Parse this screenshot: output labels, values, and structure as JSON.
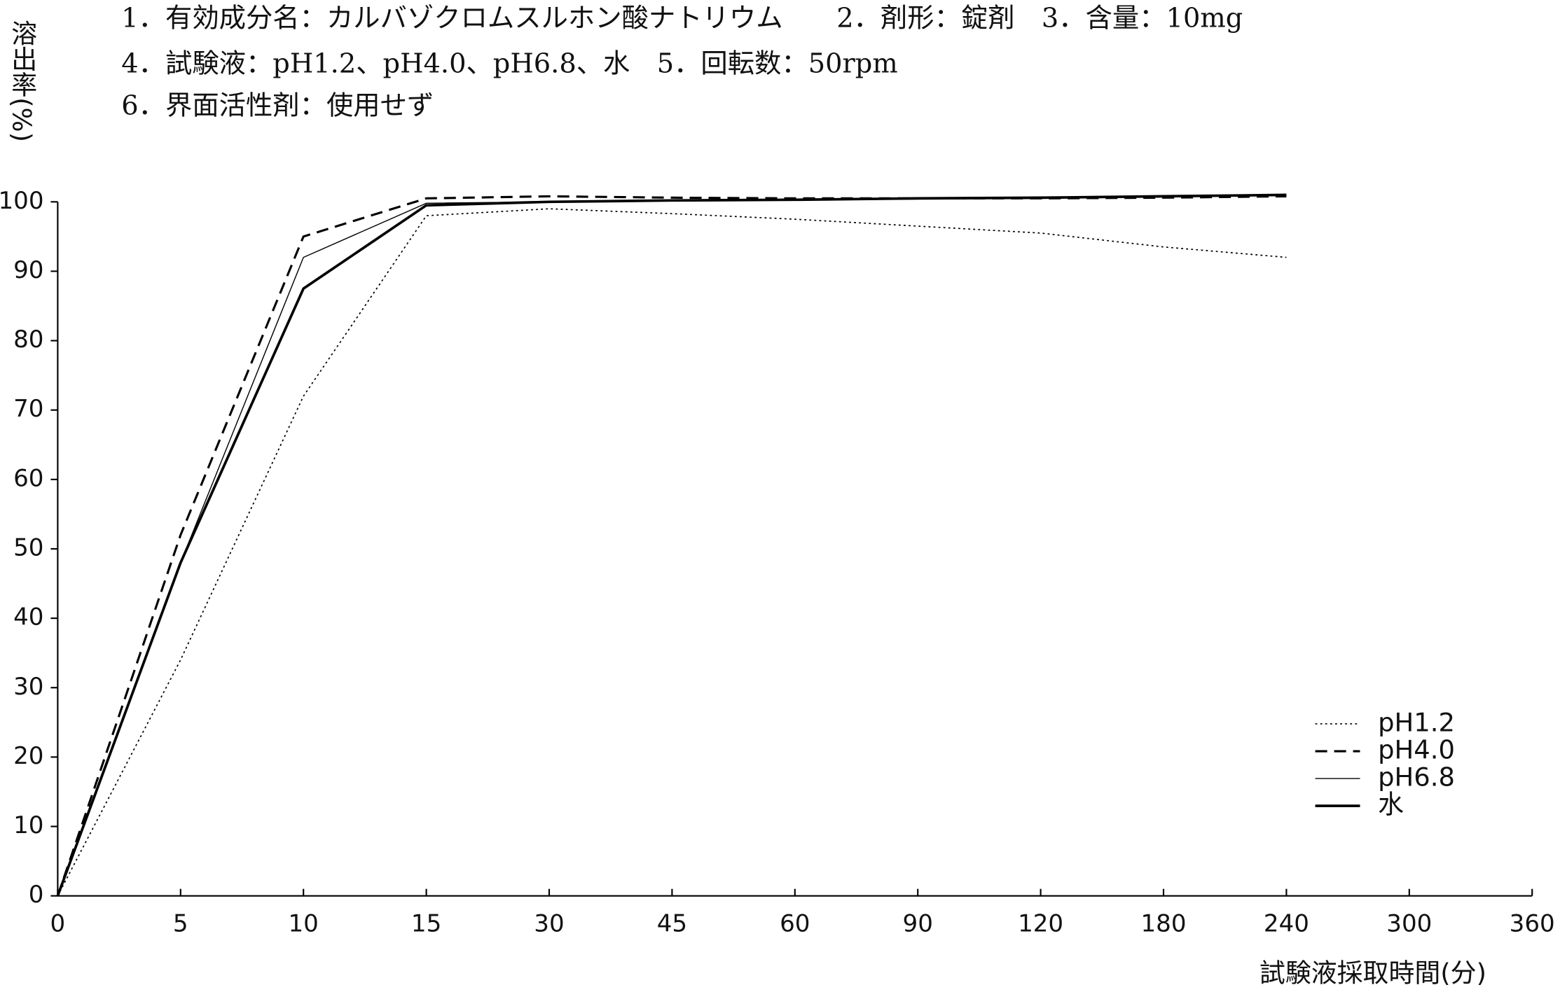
{
  "chart_data": {
    "type": "line",
    "notes": [
      "1．有効成分名：カルバゾクロムスルホン酸ナトリウム　　2．剤形：錠剤　3．含量：10mg",
      "4．試験液：pH1.2、pH4.0、pH6.8、水　5．回転数：50rpm",
      "6．界面活性剤：使用せず"
    ],
    "y_label": "溶出率(%)",
    "x_label": "試験液採取時間(分)",
    "categories": [
      "0",
      "5",
      "10",
      "15",
      "30",
      "45",
      "60",
      "90",
      "120",
      "180",
      "240",
      "300",
      "360"
    ],
    "series": [
      {
        "name": "pH1.2",
        "color": "#000000",
        "style": "dotted",
        "values": [
          0,
          34,
          72,
          98,
          99,
          98.3,
          97.5,
          96.5,
          95.5,
          93.5,
          92,
          null,
          null
        ]
      },
      {
        "name": "pH4.0",
        "color": "#000000",
        "style": "dashed",
        "values": [
          0,
          52,
          95,
          100.5,
          100.8,
          100.6,
          100.5,
          100.5,
          100.5,
          100.6,
          100.8,
          null,
          null
        ]
      },
      {
        "name": "pH6.8",
        "color": "#000000",
        "style": "thin",
        "values": [
          0,
          48,
          92,
          99.8,
          100,
          100.2,
          100.3,
          100.4,
          100.5,
          100.7,
          101,
          null,
          null
        ]
      },
      {
        "name": "水",
        "color": "#000000",
        "style": "thick",
        "values": [
          0,
          48,
          87.5,
          99.5,
          100,
          100.2,
          100.3,
          100.5,
          100.6,
          100.8,
          101,
          null,
          null
        ]
      }
    ],
    "ylim": [
      0,
      100
    ],
    "yticks": [
      0,
      10,
      20,
      30,
      40,
      50,
      60,
      70,
      80,
      90,
      100
    ],
    "legend": "lower right",
    "grid": false
  }
}
